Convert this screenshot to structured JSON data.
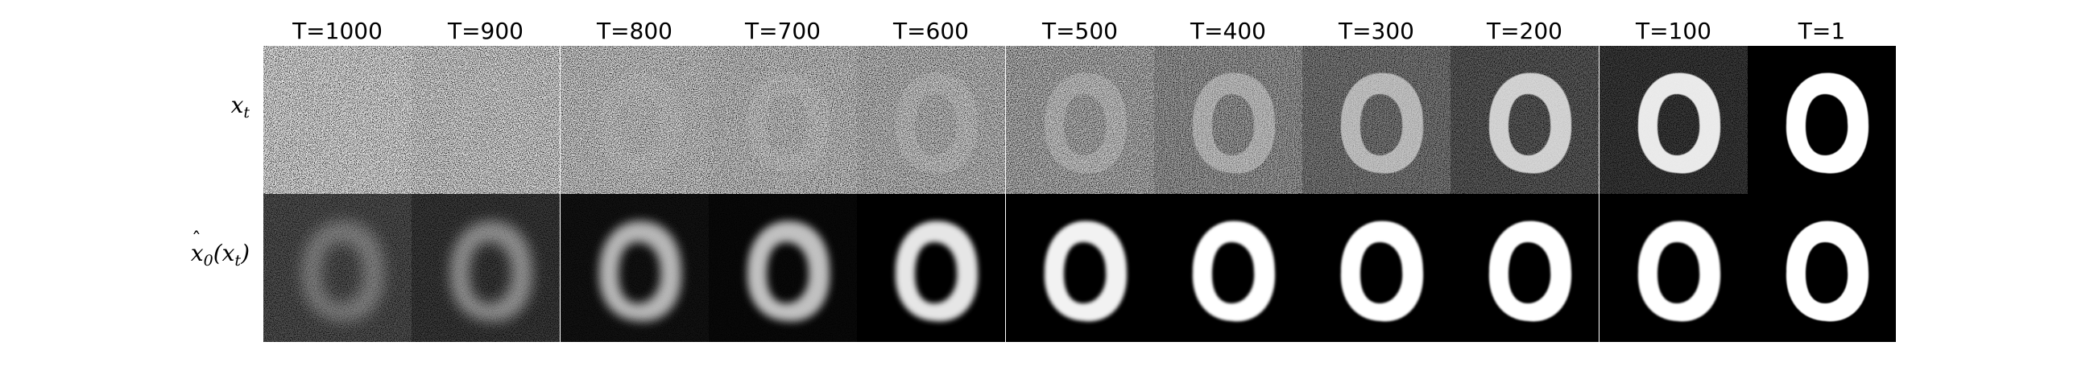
{
  "figure": {
    "columns": [
      {
        "label": "T=1000",
        "noise": 1.0,
        "clarity": 0.0,
        "blur": 0
      },
      {
        "label": "T=900",
        "noise": 0.97,
        "clarity": 0.02,
        "blur": 0
      },
      {
        "label": "T=800",
        "noise": 0.93,
        "clarity": 0.05,
        "blur": 0
      },
      {
        "label": "T=700",
        "noise": 0.9,
        "clarity": 0.08,
        "blur": 0
      },
      {
        "label": "T=600",
        "noise": 0.86,
        "clarity": 0.12,
        "blur": 0
      },
      {
        "label": "T=500",
        "noise": 0.8,
        "clarity": 0.2,
        "blur": 0
      },
      {
        "label": "T=400",
        "noise": 0.7,
        "clarity": 0.35,
        "blur": 0
      },
      {
        "label": "T=300",
        "noise": 0.55,
        "clarity": 0.55,
        "blur": 0
      },
      {
        "label": "T=200",
        "noise": 0.4,
        "clarity": 0.75,
        "blur": 0
      },
      {
        "label": "T=100",
        "noise": 0.25,
        "clarity": 0.9,
        "blur": 0
      },
      {
        "label": "T=1",
        "noise": 0.0,
        "clarity": 1.0,
        "blur": 0
      }
    ],
    "rows": [
      {
        "id": "xt",
        "label_base": "x",
        "label_sub": "t"
      },
      {
        "id": "x0hat",
        "label_base": "x",
        "label_sub": "0",
        "label_arg": "(x",
        "label_arg_sub": "t",
        "label_close": ")"
      }
    ],
    "predictions": [
      {
        "noise": 0.35,
        "brightness": 0.3,
        "blur": 9
      },
      {
        "noise": 0.25,
        "brightness": 0.45,
        "blur": 8
      },
      {
        "noise": 0.08,
        "brightness": 0.7,
        "blur": 6
      },
      {
        "noise": 0.04,
        "brightness": 0.75,
        "blur": 5
      },
      {
        "noise": 0.0,
        "brightness": 0.9,
        "blur": 3.5
      },
      {
        "noise": 0.0,
        "brightness": 0.95,
        "blur": 2.5
      },
      {
        "noise": 0.0,
        "brightness": 1.0,
        "blur": 1.5
      },
      {
        "noise": 0.0,
        "brightness": 1.0,
        "blur": 1.2
      },
      {
        "noise": 0.0,
        "brightness": 1.0,
        "blur": 1.0
      },
      {
        "noise": 0.0,
        "brightness": 1.0,
        "blur": 1.0
      },
      {
        "noise": 0.0,
        "brightness": 1.0,
        "blur": 0.8
      }
    ],
    "colors": {
      "background": "#000000",
      "foreground": "#ffffff",
      "page": "#ffffff"
    }
  }
}
